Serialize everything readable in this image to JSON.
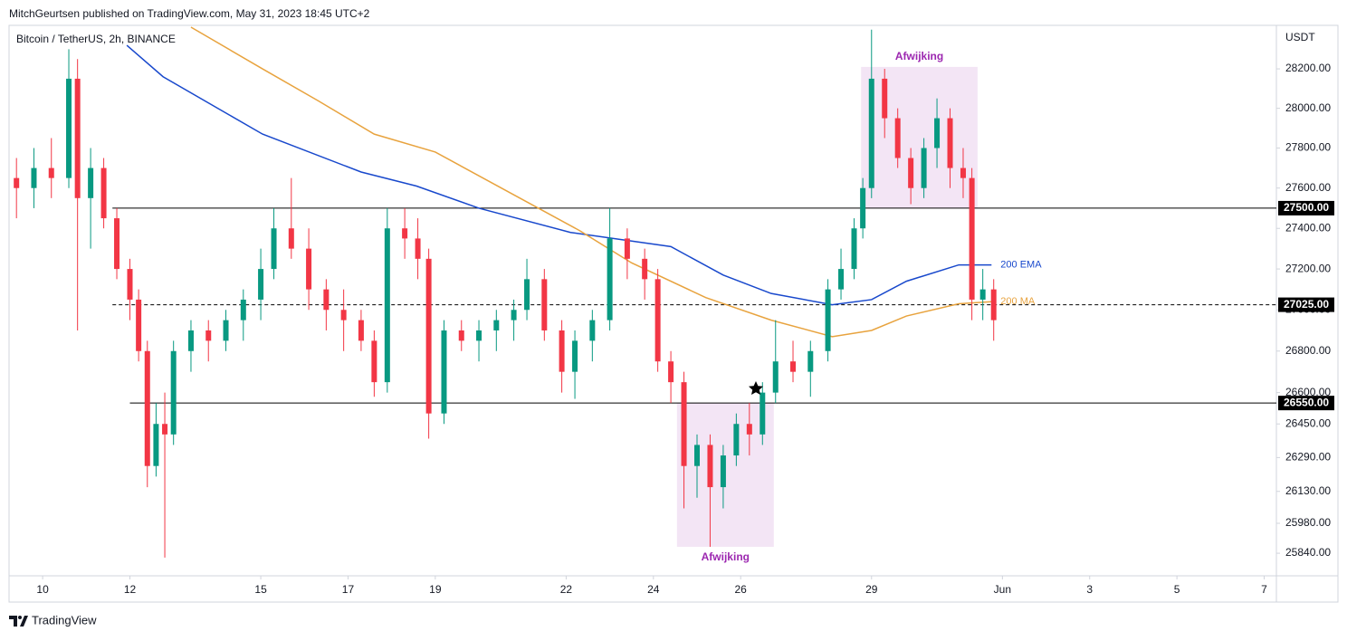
{
  "header": {
    "publisher": "MitchGeurtsen published on TradingView.com, May 31, 2023 18:45 UTC+2"
  },
  "footer": {
    "brand": "TradingView"
  },
  "chart_data": {
    "type": "candlestick",
    "title": "Bitcoin / TetherUS, 2h, BINANCE",
    "y_axis_label": "USDT",
    "log": true,
    "up_color": "#089981",
    "down_color": "#f23645",
    "x": [
      9.4,
      9.8,
      10.2,
      10.6,
      10.8,
      11.1,
      11.4,
      11.7,
      12.0,
      12.2,
      12.4,
      12.6,
      12.8,
      13.0,
      13.4,
      13.8,
      14.2,
      14.6,
      15.0,
      15.3,
      15.7,
      16.1,
      16.5,
      16.9,
      17.3,
      17.6,
      17.9,
      18.3,
      18.6,
      18.85,
      19.2,
      19.6,
      20.0,
      20.4,
      20.8,
      21.1,
      21.5,
      21.9,
      22.2,
      22.6,
      23.0,
      23.4,
      23.8,
      24.1,
      24.4,
      24.7,
      25.0,
      25.3,
      25.6,
      25.9,
      26.2,
      26.5,
      26.8,
      27.2,
      27.6,
      28.0,
      28.3,
      28.6,
      28.8,
      29.0,
      29.3,
      29.6,
      29.9,
      30.2,
      30.5,
      30.8,
      31.1,
      31.3,
      31.55,
      31.8
    ],
    "open": [
      27650,
      27600,
      27700,
      27650,
      28150,
      27550,
      27700,
      27450,
      27200,
      27050,
      26800,
      26250,
      26450,
      26400,
      26800,
      26900,
      26850,
      26950,
      27050,
      27200,
      27400,
      27300,
      27100,
      27000,
      26950,
      26850,
      26650,
      27400,
      27350,
      27250,
      26500,
      26900,
      26850,
      26900,
      26950,
      27000,
      27150,
      26900,
      26700,
      26850,
      26950,
      27350,
      27250,
      27150,
      26750,
      26650,
      26250,
      26350,
      26150,
      26300,
      26450,
      26400,
      26600,
      26750,
      26700,
      26800,
      27100,
      27200,
      27400,
      27600,
      28150,
      27950,
      27750,
      27600,
      27800,
      27950,
      27700,
      27650,
      27050,
      27100
    ],
    "high": [
      27750,
      27800,
      27850,
      28300,
      28250,
      27800,
      27750,
      27500,
      27250,
      27100,
      26850,
      26550,
      26600,
      26850,
      26950,
      26950,
      27000,
      27100,
      27300,
      27500,
      27650,
      27400,
      27150,
      27100,
      27000,
      26900,
      27500,
      27500,
      27450,
      27300,
      26950,
      26950,
      26950,
      27000,
      27050,
      27250,
      27200,
      26950,
      26900,
      27000,
      27500,
      27400,
      27300,
      27200,
      26800,
      26700,
      26400,
      26400,
      26350,
      26500,
      26550,
      26650,
      26950,
      26850,
      26850,
      27150,
      27300,
      27450,
      27650,
      28400,
      28200,
      28000,
      27800,
      27850,
      28050,
      28000,
      27800,
      27700,
      27200,
      27150
    ],
    "low": [
      27450,
      27500,
      27550,
      27600,
      26900,
      27300,
      27400,
      27150,
      26950,
      26750,
      26150,
      26200,
      25820,
      26350,
      26700,
      26750,
      26800,
      26850,
      26950,
      27150,
      27250,
      27000,
      26900,
      26800,
      26800,
      26580,
      26600,
      27250,
      27150,
      26380,
      26450,
      26800,
      26750,
      26800,
      26850,
      26950,
      26850,
      26600,
      26570,
      26750,
      26900,
      27150,
      27050,
      26700,
      26550,
      26050,
      26100,
      25870,
      26050,
      26250,
      26300,
      26350,
      26550,
      26650,
      26580,
      26750,
      27050,
      27150,
      27350,
      27550,
      27850,
      27700,
      27520,
      27550,
      27700,
      27600,
      27550,
      26950,
      26950,
      26850
    ],
    "close": [
      27600,
      27700,
      27650,
      28150,
      27550,
      27700,
      27450,
      27200,
      27050,
      26800,
      26250,
      26450,
      26400,
      26800,
      26900,
      26850,
      26950,
      27050,
      27200,
      27400,
      27300,
      27100,
      27000,
      26950,
      26850,
      26650,
      27400,
      27350,
      27250,
      26500,
      26900,
      26850,
      26900,
      26950,
      27000,
      27150,
      26900,
      26700,
      26850,
      26950,
      27350,
      27250,
      27150,
      26750,
      26650,
      26250,
      26350,
      26150,
      26300,
      26450,
      26400,
      26600,
      26750,
      26700,
      26800,
      27100,
      27200,
      27400,
      27600,
      28150,
      27950,
      27750,
      27600,
      27800,
      27950,
      27700,
      27650,
      27050,
      27100,
      26950
    ],
    "xlim": [
      9.23,
      38.28
    ],
    "ylim": [
      25735,
      28413
    ],
    "xticks": [
      10,
      12,
      15,
      17,
      19,
      22,
      24,
      26,
      29,
      {
        "value": 32,
        "label": "Jun"
      },
      {
        "value": 34,
        "label": "3"
      },
      {
        "value": 36,
        "label": "5"
      },
      {
        "value": 38,
        "label": "7"
      }
    ],
    "yticks": [
      {
        "value": 28200,
        "label": "28200.00"
      },
      {
        "value": 28000,
        "label": "28000.00"
      },
      {
        "value": 27800,
        "label": "27800.00"
      },
      {
        "value": 27600,
        "label": "27600.00"
      },
      {
        "value": 27400,
        "label": "27400.00"
      },
      {
        "value": 27200,
        "label": "27200.00"
      },
      {
        "value": 27000,
        "label": "27000.00"
      },
      {
        "value": 26800,
        "label": "26800.00"
      },
      {
        "value": 26600,
        "label": "26600.00"
      },
      {
        "value": 26450,
        "label": "26450.00"
      },
      {
        "value": 26290,
        "label": "26290.00"
      },
      {
        "value": 26130,
        "label": "26130.00"
      },
      {
        "value": 25980,
        "label": "25980.00"
      },
      {
        "value": 25840,
        "label": "25840.00"
      }
    ],
    "overlays": [
      {
        "name": "200 EMA",
        "color": "#1848cc",
        "x": [
          11.93,
          12.76,
          15.04,
          17.3,
          18.57,
          20.0,
          22.1,
          24.4,
          25.6,
          26.7,
          28.1,
          29.0,
          29.8,
          31.0,
          31.75
        ],
        "values": [
          28320,
          28160,
          27870,
          27680,
          27610,
          27500,
          27380,
          27310,
          27170,
          27080,
          27025,
          27050,
          27140,
          27220,
          27220
        ]
      },
      {
        "name": "200 MA",
        "color": "#e8a33e",
        "x": [
          13.4,
          15.04,
          16.3,
          17.6,
          19.0,
          20.6,
          22.3,
          23.5,
          25.2,
          26.7,
          28.1,
          29.0,
          29.8,
          31.0,
          31.75
        ],
        "values": [
          28413,
          28200,
          28040,
          27870,
          27780,
          27590,
          27390,
          27230,
          27060,
          26950,
          26870,
          26900,
          26970,
          27030,
          27040
        ]
      }
    ],
    "levels": [
      {
        "value": 27500,
        "label": "27500.00",
        "style": "solid",
        "from": 11.6
      },
      {
        "value": 27025,
        "label": "27025.00",
        "style": "dashed",
        "from": 11.6
      },
      {
        "value": 26550,
        "label": "26550.00",
        "style": "solid",
        "from": 12.0
      }
    ],
    "annotations": [
      {
        "text": "Afwijking",
        "x": [
          28.76,
          31.43
        ],
        "y": [
          27500,
          28210
        ],
        "label_position": "top"
      },
      {
        "text": "Afwijking",
        "x": [
          24.54,
          26.76
        ],
        "y": [
          25870,
          26550
        ],
        "label_position": "bottom"
      }
    ]
  }
}
